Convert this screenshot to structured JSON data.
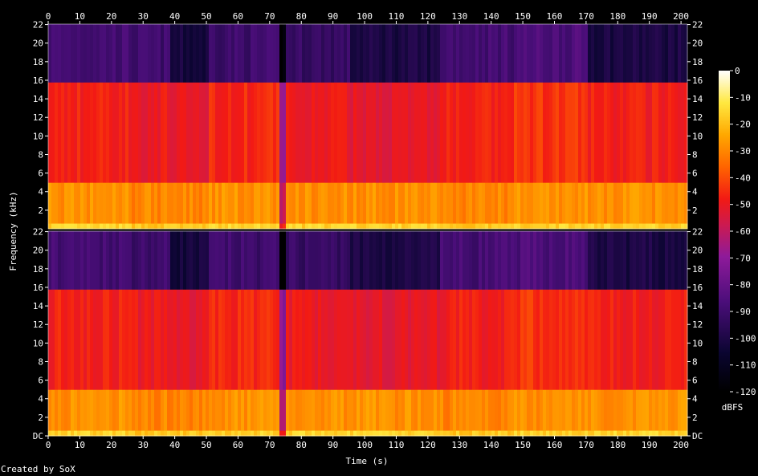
{
  "chart_data": {
    "type": "heatmap",
    "title": "",
    "xlabel": "Time (s)",
    "ylabel": "Frequency (kHz)",
    "x_ticks": [
      0,
      10,
      20,
      30,
      40,
      50,
      60,
      70,
      80,
      90,
      100,
      110,
      120,
      130,
      140,
      150,
      160,
      170,
      180,
      190,
      200
    ],
    "x_range": [
      0,
      202
    ],
    "y_ticks": [
      {
        "value": 0,
        "label": "DC"
      },
      {
        "value": 2,
        "label": "2"
      },
      {
        "value": 4,
        "label": "4"
      },
      {
        "value": 6,
        "label": "6"
      },
      {
        "value": 8,
        "label": "8"
      },
      {
        "value": 10,
        "label": "10"
      },
      {
        "value": 12,
        "label": "12"
      },
      {
        "value": 14,
        "label": "14"
      },
      {
        "value": 16,
        "label": "16"
      },
      {
        "value": 18,
        "label": "18"
      },
      {
        "value": 20,
        "label": "20"
      },
      {
        "value": 22,
        "label": "22"
      }
    ],
    "y_range": [
      0,
      22.05
    ],
    "channels": 2,
    "colorbar": {
      "label": "dBFS",
      "ticks": [
        0,
        -10,
        -20,
        -30,
        -40,
        -50,
        -60,
        -70,
        -80,
        -90,
        -100,
        -110,
        -120
      ],
      "range": [
        -120,
        0
      ]
    },
    "segments_s": [
      {
        "start": 0,
        "end": 26,
        "low_db": -28,
        "mid_db": -47,
        "high_db": -88
      },
      {
        "start": 26,
        "end": 38,
        "low_db": -30,
        "mid_db": -50,
        "high_db": -90
      },
      {
        "start": 38,
        "end": 50,
        "low_db": -30,
        "mid_db": -52,
        "high_db": -102
      },
      {
        "start": 50,
        "end": 73,
        "low_db": -28,
        "mid_db": -46,
        "high_db": -90
      },
      {
        "start": 73,
        "end": 75,
        "low_db": -60,
        "mid_db": -70,
        "high_db": -118
      },
      {
        "start": 75,
        "end": 95,
        "low_db": -28,
        "mid_db": -50,
        "high_db": -92
      },
      {
        "start": 95,
        "end": 123,
        "low_db": -28,
        "mid_db": -52,
        "high_db": -100
      },
      {
        "start": 123,
        "end": 147,
        "low_db": -30,
        "mid_db": -48,
        "high_db": -88
      },
      {
        "start": 147,
        "end": 170,
        "low_db": -28,
        "mid_db": -44,
        "high_db": -86
      },
      {
        "start": 170,
        "end": 202,
        "low_db": -28,
        "mid_db": -48,
        "high_db": -100
      }
    ],
    "cutoff_khz": 15.8
  },
  "footer": {
    "credit": "Created by SoX"
  }
}
